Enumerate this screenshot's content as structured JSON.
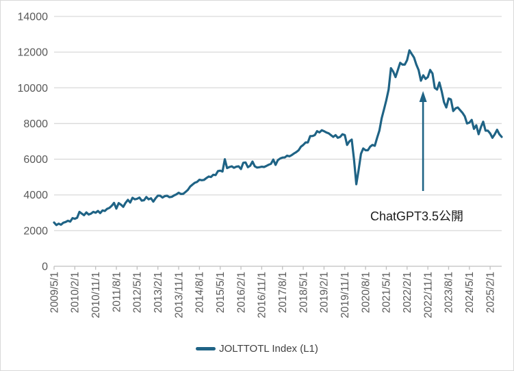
{
  "chart": {
    "colors": {
      "series": "#1f6385",
      "gridline": "#d9d9d9",
      "axis_line": "#bfbfbf",
      "tick_label": "#595959",
      "legend_text": "#404040",
      "annotation_text": "#1a1a1a",
      "background": "#ffffff"
    }
  },
  "chart_data": {
    "type": "line",
    "title": "",
    "xlabel": "",
    "ylabel": "",
    "ylim": [
      0,
      14000
    ],
    "y_ticks": [
      0,
      2000,
      4000,
      6000,
      8000,
      10000,
      12000,
      14000
    ],
    "grid": true,
    "legend_position": "bottom",
    "x_tick_labels": [
      "2009/5/1",
      "2010/2/1",
      "2010/11/1",
      "2011/8/1",
      "2012/5/1",
      "2013/2/1",
      "2013/11/1",
      "2014/8/1",
      "2015/5/1",
      "2016/2/1",
      "2016/11/1",
      "2017/8/1",
      "2018/5/1",
      "2019/2/1",
      "2019/11/1",
      "2020/8/1",
      "2021/5/1",
      "2022/2/1",
      "2022/11/1",
      "2023/8/1",
      "2024/5/1",
      "2025/2/1"
    ],
    "x_tick_interval_months": 9,
    "series": [
      {
        "name": "JOLTTOTL Index (L1)",
        "start": "2009/5",
        "frequency": "monthly",
        "values": [
          2450,
          2310,
          2390,
          2330,
          2440,
          2480,
          2550,
          2500,
          2700,
          2660,
          2720,
          3050,
          2950,
          2860,
          3020,
          2900,
          2950,
          3050,
          3000,
          3100,
          2980,
          3130,
          3100,
          3220,
          3270,
          3390,
          3550,
          3230,
          3540,
          3450,
          3330,
          3560,
          3720,
          3570,
          3840,
          3750,
          3780,
          3850,
          3680,
          3700,
          3880,
          3750,
          3810,
          3620,
          3810,
          3960,
          3950,
          3850,
          3930,
          3950,
          3870,
          3890,
          3970,
          4030,
          4120,
          4050,
          4060,
          4170,
          4280,
          4470,
          4580,
          4680,
          4730,
          4850,
          4820,
          4840,
          4940,
          5030,
          5000,
          5130,
          5110,
          5330,
          5360,
          5310,
          6000,
          5500,
          5560,
          5600,
          5520,
          5580,
          5600,
          5450,
          5800,
          5820,
          5550,
          5630,
          5870,
          5600,
          5530,
          5550,
          5580,
          5560,
          5620,
          5690,
          5740,
          5980,
          5680,
          5950,
          6040,
          6090,
          6100,
          6200,
          6160,
          6230,
          6320,
          6400,
          6500,
          6700,
          6800,
          6940,
          6940,
          7290,
          7300,
          7350,
          7570,
          7500,
          7620,
          7570,
          7500,
          7450,
          7350,
          7250,
          7350,
          7200,
          7250,
          7400,
          7350,
          6800,
          7000,
          7100,
          6000,
          4600,
          5400,
          6300,
          6600,
          6500,
          6500,
          6700,
          6800,
          6750,
          7200,
          7600,
          8300,
          8800,
          9300,
          9900,
          11100,
          10900,
          10600,
          11000,
          11400,
          11300,
          11300,
          11550,
          12100,
          11900,
          11700,
          11300,
          11000,
          10400,
          10700,
          10500,
          10600,
          11000,
          10800,
          10000,
          9900,
          10300,
          9800,
          9200,
          8900,
          9400,
          9350,
          8700,
          8850,
          8900,
          8750,
          8600,
          8400,
          8000,
          8050,
          8200,
          7700,
          7900,
          7400,
          7800,
          8100,
          7600,
          7600,
          7450,
          7200,
          7400,
          7650,
          7400,
          7250
        ]
      }
    ],
    "annotation": {
      "text": "ChatGPT3.5公開",
      "points_at": "2022/11",
      "arrow_direction": "up"
    }
  }
}
